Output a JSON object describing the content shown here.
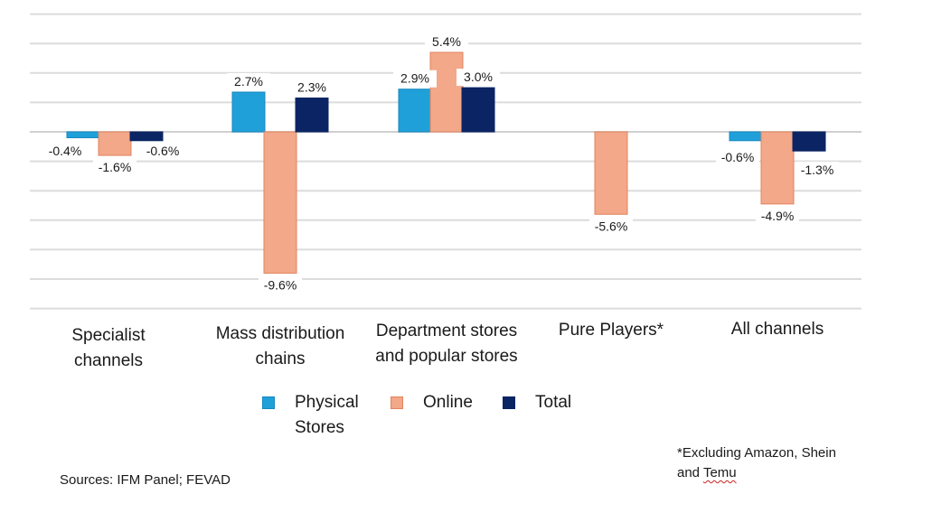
{
  "chart_data": {
    "type": "bar",
    "title": "",
    "xlabel": "",
    "ylabel": "",
    "ylim": [
      -12,
      8
    ],
    "grid": true,
    "categories": [
      [
        "Specialist",
        "channels"
      ],
      [
        "Mass distribution",
        "chains"
      ],
      [
        "Department stores",
        "and popular stores"
      ],
      [
        "Pure Players*"
      ],
      [
        "All channels"
      ]
    ],
    "series": [
      {
        "name": "Physical Stores",
        "legend_lines": [
          "Physical",
          "Stores"
        ],
        "color": "#1fa0d8",
        "stroke": "#1788c0",
        "values": [
          -0.4,
          2.7,
          2.9,
          null,
          -0.6
        ],
        "labels": [
          "-0.4%",
          "2.7%",
          "2.9%",
          "",
          "-0.6%"
        ]
      },
      {
        "name": "Online",
        "legend_lines": [
          "Online"
        ],
        "color": "#f2a889",
        "stroke": "#e2845f",
        "values": [
          -1.6,
          -9.6,
          5.4,
          -5.6,
          -4.9
        ],
        "labels": [
          "-1.6%",
          "-9.6%",
          "5.4%",
          "-5.6%",
          "-4.9%"
        ]
      },
      {
        "name": "Total",
        "legend_lines": [
          "Total"
        ],
        "color": "#0b2463",
        "stroke": "#0b2463",
        "values": [
          -0.6,
          2.3,
          3.0,
          null,
          -1.3
        ],
        "labels": [
          "-0.6%",
          "2.3%",
          "3.0%",
          "",
          "-1.3%"
        ]
      }
    ]
  },
  "footnote": {
    "sources": "Sources: IFM Panel; FEVAD",
    "excluding_line1": "*Excluding Amazon, Shein",
    "excluding_and": "and ",
    "excluding_temu": "Temu"
  }
}
